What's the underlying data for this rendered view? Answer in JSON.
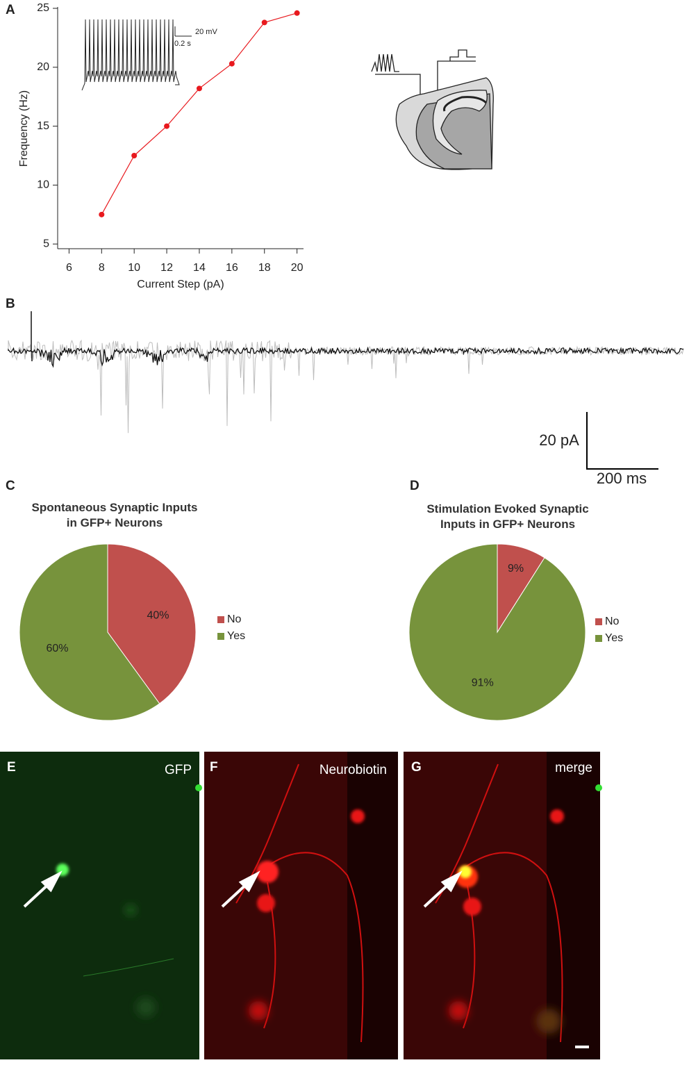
{
  "chart_data": [
    {
      "type": "line",
      "xlabel": "Current Step (pA)",
      "ylabel": "Frequency (Hz)",
      "x": [
        8,
        10,
        12,
        14,
        16,
        18,
        20
      ],
      "values": [
        7.5,
        12.5,
        15,
        18.2,
        20.3,
        23.8,
        24.6
      ],
      "color": "#e8191e",
      "xlim": [
        5.3,
        20.4
      ],
      "xticks": [
        6,
        8,
        10,
        12,
        14,
        16,
        18,
        20
      ],
      "ylim": [
        4.6,
        25
      ],
      "yticks": [
        5,
        10,
        15,
        20,
        25
      ],
      "annotations": [
        "20 mV",
        "0.2 s"
      ]
    },
    {
      "type": "pie",
      "title": "Spontaneous Synaptic Inputs\nin GFP+ Neurons",
      "categories": [
        "No",
        "Yes"
      ],
      "values": [
        40,
        60
      ],
      "value_labels": [
        "40%",
        "60%"
      ],
      "colors": [
        "#c0504d",
        "#77933c"
      ]
    },
    {
      "type": "pie",
      "title": "Stimulation Evoked Synaptic\nInputs in GFP+ Neurons",
      "categories": [
        "No",
        "Yes"
      ],
      "values": [
        9,
        91
      ],
      "value_labels": [
        "9%",
        "91%"
      ],
      "colors": [
        "#c0504d",
        "#77933c"
      ]
    }
  ],
  "panels": [
    "A",
    "B",
    "C",
    "D",
    "E",
    "F",
    "G"
  ],
  "scale_bar": [
    "20 pA",
    "200 ms"
  ],
  "images": [
    "GFP",
    "Neurobiotin",
    "merge"
  ]
}
